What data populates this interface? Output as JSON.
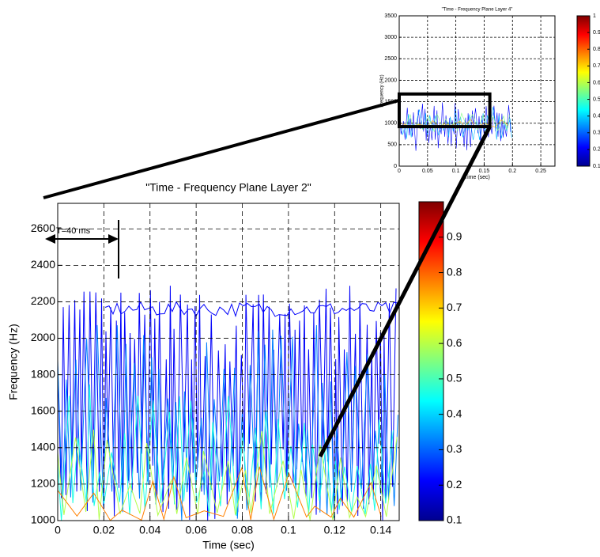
{
  "chart_data": [
    {
      "type": "contour",
      "title": "\"Time - Frequency Plane Layer 2\"",
      "xlabel": "Time (sec)",
      "ylabel": "Frequency (Hz)",
      "xlim": [
        0,
        0.148
      ],
      "xticks": [
        0,
        0.02,
        0.04,
        0.06,
        0.08,
        0.1,
        0.12,
        0.14
      ],
      "ylim": [
        1000,
        2740
      ],
      "yticks": [
        1000,
        1200,
        1400,
        1600,
        1800,
        2000,
        2200,
        2400,
        2600
      ],
      "grid": true,
      "colormap": "jet",
      "clim": [
        0.1,
        1
      ],
      "cticks": [
        0.1,
        0.2,
        0.3,
        0.4,
        0.5,
        0.6,
        0.7,
        0.8,
        0.9
      ],
      "annotation": "T=40 ms"
    },
    {
      "type": "contour",
      "title": "\"Time - Frequency Plane Layer 4\"",
      "xlabel": "Time (sec)",
      "ylabel": "Frequency (Hz)",
      "xlim": [
        0,
        0.275
      ],
      "xticks": [
        0,
        0.05,
        0.1,
        0.15,
        0.2,
        0.25
      ],
      "ylim": [
        0,
        3500
      ],
      "yticks": [
        0,
        500,
        1000,
        1500,
        2000,
        2500,
        3000,
        3500
      ],
      "grid": true,
      "colormap": "jet",
      "clim": [
        0.1,
        1
      ],
      "cticks": [
        0.1,
        0.2,
        0.3,
        0.4,
        0.5,
        0.6,
        0.7,
        0.8,
        0.9,
        1
      ]
    }
  ]
}
